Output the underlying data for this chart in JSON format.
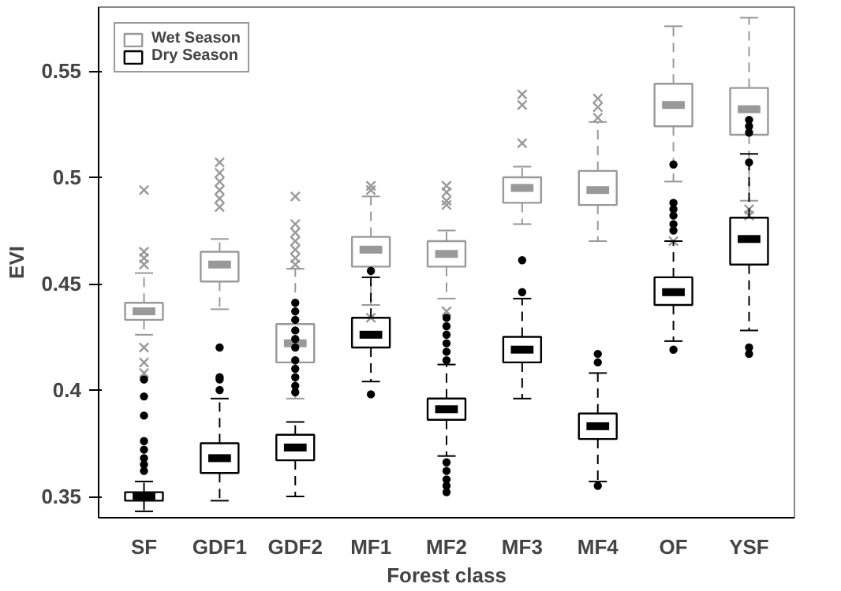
{
  "chart_data": {
    "type": "box",
    "xlabel": "Forest class",
    "ylabel": "EVI",
    "categories": [
      "SF",
      "GDF1",
      "GDF2",
      "MF1",
      "MF2",
      "MF3",
      "MF4",
      "OF",
      "YSF"
    ],
    "ylim": [
      0.34,
      0.58
    ],
    "yticks": [
      0.35,
      0.4,
      0.45,
      0.5,
      0.55
    ],
    "grid": false,
    "legend": "top left",
    "series": [
      {
        "name": "Wet Season",
        "color": "#999999",
        "marker": "cross",
        "boxes": [
          {
            "low": 0.426,
            "q1": 0.433,
            "median": 0.437,
            "q3": 0.441,
            "high": 0.455,
            "outliers": [
              0.494,
              0.465,
              0.462,
              0.459,
              0.42,
              0.413,
              0.408
            ]
          },
          {
            "low": 0.438,
            "q1": 0.451,
            "median": 0.459,
            "q3": 0.465,
            "high": 0.471,
            "outliers": [
              0.486,
              0.49,
              0.494,
              0.498,
              0.502,
              0.507
            ]
          },
          {
            "low": 0.396,
            "q1": 0.413,
            "median": 0.422,
            "q3": 0.431,
            "high": 0.457,
            "outliers": [
              0.491,
              0.478,
              0.474,
              0.47,
              0.466,
              0.462,
              0.459
            ]
          },
          {
            "low": 0.44,
            "q1": 0.458,
            "median": 0.466,
            "q3": 0.472,
            "high": 0.491,
            "outliers": [
              0.496,
              0.494,
              0.434
            ]
          },
          {
            "low": 0.443,
            "q1": 0.458,
            "median": 0.464,
            "q3": 0.47,
            "high": 0.475,
            "outliers": [
              0.496,
              0.493,
              0.489,
              0.487,
              0.437
            ]
          },
          {
            "low": 0.478,
            "q1": 0.488,
            "median": 0.495,
            "q3": 0.5,
            "high": 0.505,
            "outliers": [
              0.539,
              0.534,
              0.516
            ]
          },
          {
            "low": 0.47,
            "q1": 0.487,
            "median": 0.494,
            "q3": 0.503,
            "high": 0.526,
            "outliers": [
              0.537,
              0.533,
              0.528
            ]
          },
          {
            "low": 0.498,
            "q1": 0.524,
            "median": 0.534,
            "q3": 0.544,
            "high": 0.571,
            "outliers": [
              0.47
            ]
          },
          {
            "low": 0.489,
            "q1": 0.52,
            "median": 0.532,
            "q3": 0.542,
            "high": 0.575,
            "outliers": [
              0.485,
              0.482
            ]
          }
        ]
      },
      {
        "name": "Dry Season",
        "color": "#000000",
        "marker": "circle",
        "boxes": [
          {
            "low": 0.343,
            "q1": 0.348,
            "median": 0.35,
            "q3": 0.352,
            "high": 0.357,
            "outliers": [
              0.405,
              0.397,
              0.388,
              0.376,
              0.372,
              0.368,
              0.365,
              0.362
            ]
          },
          {
            "low": 0.348,
            "q1": 0.361,
            "median": 0.368,
            "q3": 0.375,
            "high": 0.396,
            "outliers": [
              0.42,
              0.406,
              0.405,
              0.4
            ]
          },
          {
            "low": 0.35,
            "q1": 0.367,
            "median": 0.373,
            "q3": 0.379,
            "high": 0.385,
            "outliers": [
              0.441,
              0.437,
              0.433,
              0.428,
              0.424,
              0.42,
              0.414,
              0.41,
              0.406,
              0.402,
              0.399
            ]
          },
          {
            "low": 0.404,
            "q1": 0.42,
            "median": 0.426,
            "q3": 0.434,
            "high": 0.453,
            "outliers": [
              0.456,
              0.398
            ]
          },
          {
            "low": 0.369,
            "q1": 0.386,
            "median": 0.391,
            "q3": 0.396,
            "high": 0.412,
            "outliers": [
              0.434,
              0.43,
              0.426,
              0.422,
              0.418,
              0.414,
              0.366,
              0.362,
              0.358,
              0.355,
              0.352
            ]
          },
          {
            "low": 0.396,
            "q1": 0.413,
            "median": 0.419,
            "q3": 0.425,
            "high": 0.443,
            "outliers": [
              0.461,
              0.446
            ]
          },
          {
            "low": 0.357,
            "q1": 0.377,
            "median": 0.383,
            "q3": 0.389,
            "high": 0.408,
            "outliers": [
              0.417,
              0.413,
              0.355
            ]
          },
          {
            "low": 0.423,
            "q1": 0.44,
            "median": 0.446,
            "q3": 0.453,
            "high": 0.47,
            "outliers": [
              0.506,
              0.488,
              0.485,
              0.482,
              0.478,
              0.475,
              0.419
            ]
          },
          {
            "low": 0.428,
            "q1": 0.459,
            "median": 0.471,
            "q3": 0.481,
            "high": 0.511,
            "outliers": [
              0.527,
              0.524,
              0.521,
              0.507,
              0.42,
              0.417
            ]
          }
        ]
      }
    ]
  }
}
